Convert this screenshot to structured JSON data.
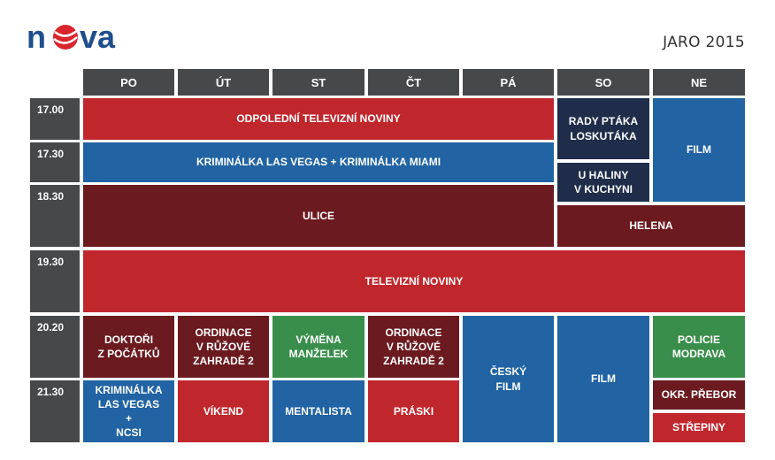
{
  "header": {
    "logo_text": "nova",
    "season": "JARO 2015"
  },
  "days": [
    "PO",
    "ÚT",
    "ST",
    "ČT",
    "PÁ",
    "SO",
    "NE"
  ],
  "times": [
    "17.00",
    "17.30",
    "18.30",
    "19.30",
    "20.20",
    "21.30"
  ],
  "programs": {
    "odpoledni_noviny": "ODPOLEDNÍ TELEVIZNÍ NOVINY",
    "rady_ptaka": "RADY PTÁKA\nLOSKUTÁKA",
    "film_ne_1": "FILM",
    "kriminalka_vegas_miami": "KRIMINÁLKA LAS VEGAS + KRIMINÁLKA MIAMI",
    "u_haliny": "U HALINY\nV KUCHYNI",
    "ulice": "ULICE",
    "helena": "HELENA",
    "televizni_noviny": "TELEVIZNÍ NOVINY",
    "doktori": "DOKTOŘI\nZ POČÁTKŮ",
    "ordinace_ut": "ORDINACE\nV RŮŽOVÉ\nZAHRADĚ 2",
    "vymena": "VÝMĚNA\nMANŽELEK",
    "ordinace_ct": "ORDINACE\nV RŮŽOVÉ\nZAHRADĚ 2",
    "cesky_film": "ČESKÝ\nFILM",
    "film_so": "FILM",
    "policie_modrava": "POLICIE\nMODRAVA",
    "kriminalka_ncsi": "KRIMINÁLKA\nLAS VEGAS\n+\nNCSI",
    "vikend": "VÍKEND",
    "mentalista": "MENTALISTA",
    "praski": "PRÁSKI",
    "okr_prebor": "OKR. PŘEBOR",
    "strepiny": "STŘEPINY"
  },
  "colors": {
    "red": "#c0272d",
    "blue": "#2163a3",
    "maroon": "#6b1a1f",
    "navy": "#1f2d4a",
    "green": "#3a8e4b",
    "gray": "#47484a"
  }
}
